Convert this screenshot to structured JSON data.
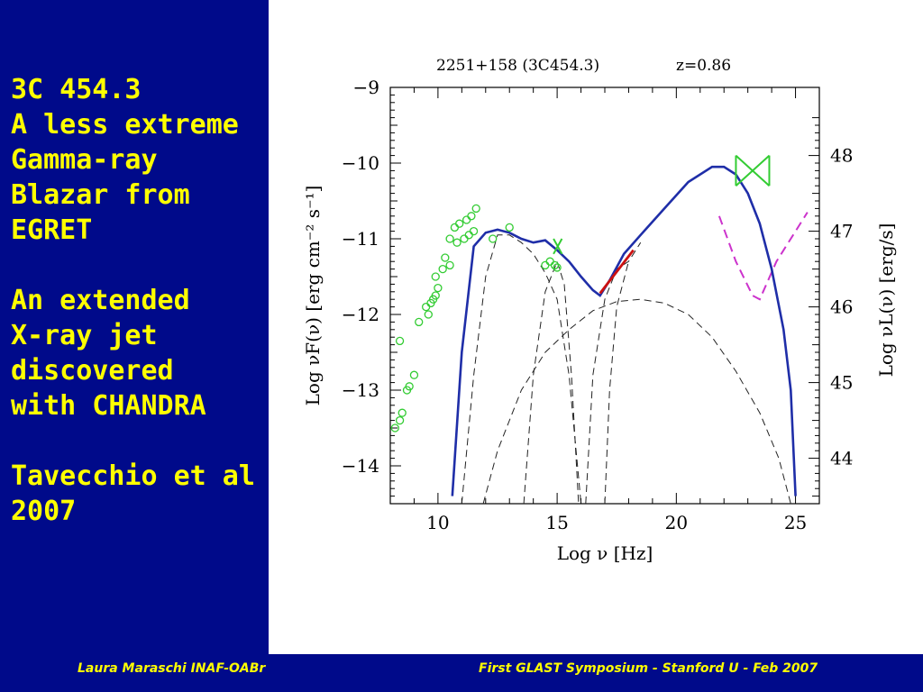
{
  "slide": {
    "lines": [
      "3C 454.3",
      "A less extreme",
      "Gamma-ray",
      "Blazar from",
      "EGRET",
      "",
      "An extended",
      "X-ray jet",
      "discovered",
      "with CHANDRA",
      "",
      "Tavecchio et al",
      "2007"
    ]
  },
  "footer": {
    "left": "Laura Maraschi INAF-OABr",
    "right": "First GLAST Symposium - Stanford U - Feb 2007"
  },
  "colors": {
    "panel": "#000a8a",
    "slide_text": "#ffff00",
    "model": "#1f2ea8",
    "data_points": "#33cc33",
    "xray": "#cc1111",
    "upper": "#cc33cc"
  },
  "chart_data": {
    "type": "scatter",
    "title": "2251+158 (3C454.3)",
    "redshift_label": "z=0.86",
    "xlabel": "Log ν [Hz]",
    "ylabel": "Log νF(ν) [erg cm⁻² s⁻¹]",
    "y2label": "Log νL(ν) [erg/s]",
    "xlim": [
      8,
      26
    ],
    "ylim": [
      -14.5,
      -9
    ],
    "x_ticks": [
      10,
      15,
      20,
      25
    ],
    "y_ticks": [
      -14,
      -13,
      -12,
      -11,
      -10,
      -9
    ],
    "y2_ticks": [
      44,
      45,
      46,
      47,
      48
    ],
    "y2_offset": 57.9,
    "grid": false,
    "series": [
      {
        "kind": "model",
        "style": "solid",
        "points": [
          [
            10.6,
            -14.4
          ],
          [
            11.0,
            -12.5
          ],
          [
            11.5,
            -11.1
          ],
          [
            12.0,
            -10.92
          ],
          [
            12.5,
            -10.88
          ],
          [
            13.0,
            -10.92
          ],
          [
            13.5,
            -11.0
          ],
          [
            14.0,
            -11.05
          ],
          [
            14.5,
            -11.02
          ],
          [
            15.0,
            -11.15
          ],
          [
            15.5,
            -11.3
          ],
          [
            16.0,
            -11.5
          ],
          [
            16.5,
            -11.68
          ],
          [
            16.8,
            -11.75
          ],
          [
            17.2,
            -11.55
          ],
          [
            17.8,
            -11.2
          ],
          [
            18.5,
            -10.95
          ],
          [
            19.5,
            -10.6
          ],
          [
            20.5,
            -10.25
          ],
          [
            21.5,
            -10.05
          ],
          [
            22.0,
            -10.05
          ],
          [
            22.5,
            -10.15
          ],
          [
            23.0,
            -10.4
          ],
          [
            23.5,
            -10.8
          ],
          [
            24.0,
            -11.4
          ],
          [
            24.5,
            -12.2
          ],
          [
            24.8,
            -13.0
          ],
          [
            25.0,
            -14.4
          ]
        ]
      },
      {
        "kind": "component",
        "style": "dashed",
        "points": [
          [
            11.0,
            -14.5
          ],
          [
            11.5,
            -12.8
          ],
          [
            12.0,
            -11.5
          ],
          [
            12.5,
            -10.95
          ],
          [
            13.0,
            -10.95
          ],
          [
            13.5,
            -11.05
          ],
          [
            14.0,
            -11.2
          ],
          [
            14.5,
            -11.45
          ],
          [
            15.0,
            -11.8
          ],
          [
            15.5,
            -12.8
          ],
          [
            16.0,
            -14.5
          ]
        ]
      },
      {
        "kind": "component",
        "style": "dashed",
        "points": [
          [
            13.6,
            -14.5
          ],
          [
            14.0,
            -12.8
          ],
          [
            14.5,
            -11.7
          ],
          [
            15.0,
            -11.3
          ],
          [
            15.3,
            -11.6
          ],
          [
            15.6,
            -12.8
          ],
          [
            15.9,
            -14.5
          ]
        ]
      },
      {
        "kind": "component",
        "style": "dashed",
        "points": [
          [
            16.2,
            -14.5
          ],
          [
            16.5,
            -12.8
          ],
          [
            17.0,
            -11.8
          ],
          [
            17.5,
            -11.4
          ],
          [
            18.0,
            -11.3
          ],
          [
            18.5,
            -11.05
          ]
        ]
      },
      {
        "kind": "component",
        "style": "dashed",
        "points": [
          [
            11.9,
            -14.5
          ],
          [
            12.5,
            -13.8
          ],
          [
            13.5,
            -13.0
          ],
          [
            14.5,
            -12.5
          ],
          [
            15.5,
            -12.2
          ],
          [
            16.5,
            -11.95
          ],
          [
            17.5,
            -11.83
          ],
          [
            18.5,
            -11.8
          ],
          [
            19.5,
            -11.85
          ],
          [
            20.5,
            -12.0
          ],
          [
            21.5,
            -12.3
          ],
          [
            22.5,
            -12.75
          ],
          [
            23.5,
            -13.3
          ],
          [
            24.3,
            -13.9
          ],
          [
            24.8,
            -14.5
          ]
        ]
      },
      {
        "kind": "component",
        "style": "dashed",
        "points": [
          [
            17.0,
            -14.5
          ],
          [
            17.2,
            -13.0
          ],
          [
            17.5,
            -11.9
          ],
          [
            18.0,
            -11.3
          ]
        ]
      },
      {
        "kind": "upper_limit",
        "style": "dashed",
        "points": [
          [
            21.8,
            -10.7
          ],
          [
            22.5,
            -11.3
          ],
          [
            23.2,
            -11.75
          ],
          [
            23.5,
            -11.8
          ],
          [
            24.2,
            -11.3
          ],
          [
            25.0,
            -10.9
          ],
          [
            25.5,
            -10.65
          ]
        ]
      },
      {
        "kind": "xray_bowtie",
        "style": "solid",
        "points": [
          [
            16.8,
            -11.72
          ],
          [
            18.2,
            -11.15
          ]
        ]
      },
      {
        "kind": "gamma_bowtie",
        "style": "solid",
        "points": [
          [
            22.5,
            -9.9
          ],
          [
            23.9,
            -10.3
          ]
        ]
      },
      {
        "kind": "gamma_bowtie",
        "style": "solid",
        "points": [
          [
            22.5,
            -10.3
          ],
          [
            23.9,
            -9.9
          ]
        ]
      },
      {
        "kind": "optical_bowtie",
        "style": "solid",
        "points": [
          [
            14.85,
            -11.0
          ],
          [
            15.2,
            -11.2
          ]
        ]
      },
      {
        "kind": "optical_bowtie",
        "style": "solid",
        "points": [
          [
            14.85,
            -11.2
          ],
          [
            15.2,
            -11.0
          ]
        ]
      }
    ],
    "data_points": [
      [
        8.2,
        -13.5
      ],
      [
        8.4,
        -13.4
      ],
      [
        8.5,
        -13.3
      ],
      [
        8.7,
        -13.0
      ],
      [
        8.8,
        -12.95
      ],
      [
        9.0,
        -12.8
      ],
      [
        8.4,
        -12.35
      ],
      [
        9.2,
        -12.1
      ],
      [
        9.6,
        -12.0
      ],
      [
        9.5,
        -11.9
      ],
      [
        9.7,
        -11.85
      ],
      [
        9.8,
        -11.8
      ],
      [
        9.9,
        -11.75
      ],
      [
        10.0,
        -11.65
      ],
      [
        9.9,
        -11.5
      ],
      [
        10.2,
        -11.4
      ],
      [
        10.5,
        -11.35
      ],
      [
        10.3,
        -11.25
      ],
      [
        10.5,
        -11.0
      ],
      [
        10.8,
        -11.05
      ],
      [
        11.1,
        -11.0
      ],
      [
        11.3,
        -10.95
      ],
      [
        11.5,
        -10.9
      ],
      [
        10.7,
        -10.85
      ],
      [
        10.9,
        -10.8
      ],
      [
        11.2,
        -10.75
      ],
      [
        11.4,
        -10.7
      ],
      [
        11.6,
        -10.6
      ],
      [
        12.3,
        -11.0
      ],
      [
        13.0,
        -10.85
      ],
      [
        14.5,
        -11.35
      ],
      [
        14.7,
        -11.3
      ],
      [
        14.9,
        -11.35
      ],
      [
        15.0,
        -11.38
      ]
    ]
  }
}
